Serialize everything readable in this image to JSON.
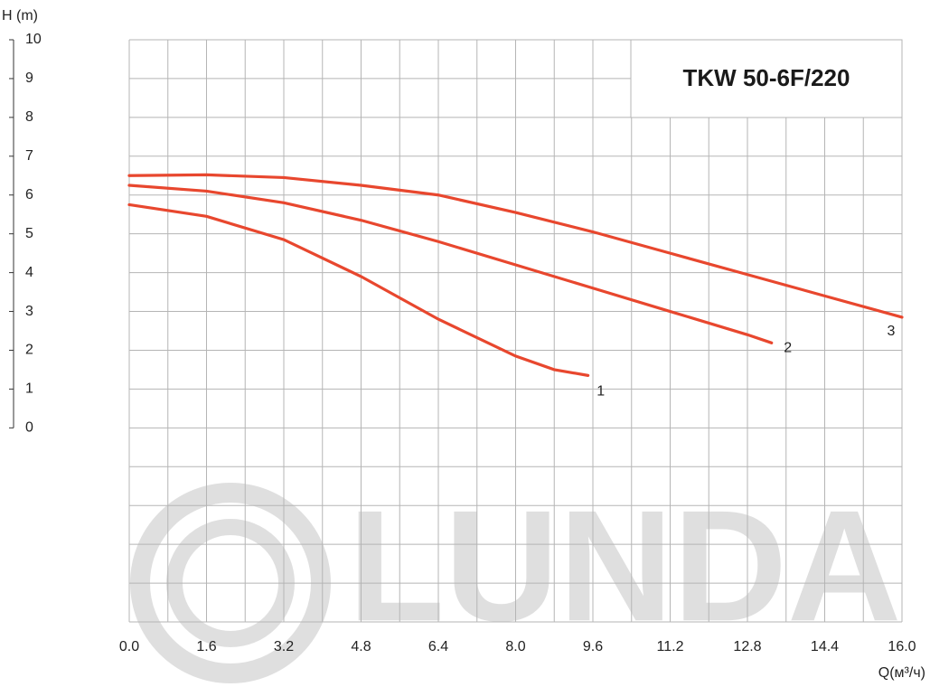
{
  "chart_data": {
    "type": "line",
    "title": "TKW 50-6F/220",
    "watermark": "LUNDA",
    "y_label": "H (m)",
    "x_label": "Q(м³/ч)",
    "xlim": [
      0,
      16
    ],
    "ylim": [
      -5,
      10
    ],
    "xticks": [
      {
        "value": 0,
        "label": "0.0"
      },
      1.6,
      3.2,
      4.8,
      6.4,
      {
        "value": 8,
        "label": "8.0"
      },
      9.6,
      11.2,
      12.8,
      14.4,
      {
        "value": 16,
        "label": "16.0"
      }
    ],
    "yticks": [
      0,
      1,
      2,
      3,
      4,
      5,
      6,
      7,
      8,
      9,
      10
    ],
    "xgrid": [
      0,
      0.8,
      1.6,
      2.4,
      3.2,
      4,
      4.8,
      5.6,
      6.4,
      7.2,
      8,
      8.8,
      9.6,
      10.4,
      11.2,
      12,
      12.8,
      13.6,
      14.4,
      15.2,
      16
    ],
    "ygrid": [
      -5,
      -4,
      -3,
      -2,
      -1,
      0,
      1,
      2,
      3,
      4,
      5,
      6,
      7,
      8,
      9,
      10
    ],
    "grid": true,
    "series": [
      {
        "name": "1",
        "color": "#e8472e",
        "x": [
          0,
          1.6,
          3.2,
          4.8,
          6.4,
          8,
          8.8,
          9.5
        ],
        "values": [
          5.75,
          5.45,
          4.85,
          3.9,
          2.8,
          1.85,
          1.5,
          1.35
        ]
      },
      {
        "name": "2",
        "color": "#e8472e",
        "x": [
          0,
          1.6,
          3.2,
          4.8,
          6.4,
          8,
          9.6,
          11.2,
          12.8,
          13.3
        ],
        "values": [
          6.25,
          6.1,
          5.8,
          5.35,
          4.8,
          4.2,
          3.6,
          3.0,
          2.4,
          2.19
        ]
      },
      {
        "name": "3",
        "color": "#e8472e",
        "x": [
          0,
          1.6,
          3.2,
          4.8,
          6.4,
          8,
          9.6,
          11.2,
          12.8,
          14.4,
          16
        ],
        "values": [
          6.5,
          6.52,
          6.45,
          6.25,
          6.0,
          5.55,
          5.05,
          4.5,
          3.95,
          3.4,
          2.85
        ]
      }
    ]
  }
}
